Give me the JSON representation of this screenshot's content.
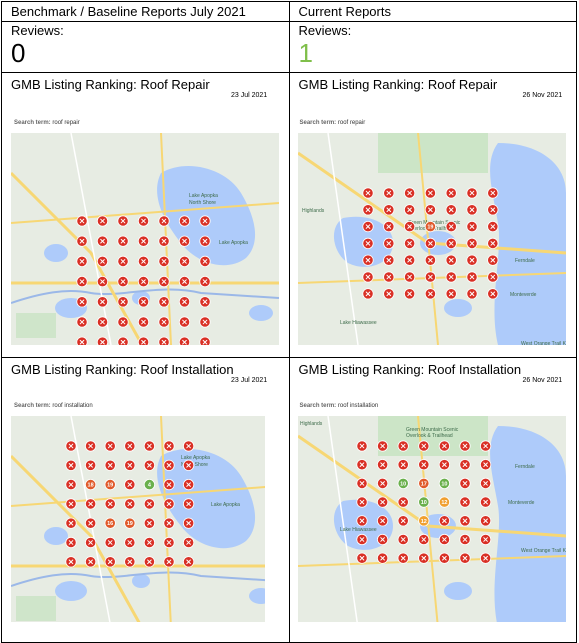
{
  "headers": {
    "baseline": "Benchmark / Baseline Reports July 2021",
    "current": "Current Reports"
  },
  "reviews": {
    "label": "Reviews:",
    "baseline_value": "0",
    "current_value": "1"
  },
  "maps": [
    {
      "title": "GMB Listing Ranking: Roof Repair",
      "date": "23 Jul 2021",
      "search_label": "Search term:",
      "search_term": "roof repair",
      "place_labels": [
        "Lake Apopka",
        "North Shore",
        "Lake Apopka"
      ],
      "grid": [
        [
          "x",
          "x",
          "x",
          "x",
          "x",
          "x",
          "x"
        ],
        [
          "x",
          "x",
          "x",
          "x",
          "x",
          "x",
          "x"
        ],
        [
          "x",
          "x",
          "x",
          "x",
          "x",
          "x",
          "x"
        ],
        [
          "x",
          "x",
          "x",
          "x",
          "x",
          "x",
          "x"
        ],
        [
          "x",
          "x",
          "x",
          "x",
          "x",
          "x",
          "x"
        ],
        [
          "x",
          "x",
          "x",
          "x",
          "x",
          "x",
          "x"
        ],
        [
          "x",
          "x",
          "x",
          "x",
          "x",
          "x",
          "x"
        ]
      ]
    },
    {
      "title": "GMB Listing Ranking: Roof Repair",
      "date": "26 Nov 2021",
      "search_label": "Search term:",
      "search_term": "roof repair",
      "place_labels": [
        "Highlands",
        "Green Mountain Scenic",
        "Overlook & Trailhead",
        "Lake Hiawassee",
        "Ferndale",
        "Monteverde",
        "West Orange Trail Killarney Station"
      ],
      "grid": [
        [
          "x",
          "x",
          "x",
          "x",
          "x",
          "x",
          "x"
        ],
        [
          "x",
          "x",
          "x",
          "x",
          "x",
          "x",
          "x"
        ],
        [
          "x",
          "x",
          "x",
          "19",
          "x",
          "x",
          "x"
        ],
        [
          "x",
          "x",
          "x",
          "x",
          "x",
          "x",
          "x"
        ],
        [
          "x",
          "x",
          "x",
          "x",
          "x",
          "x",
          "x"
        ],
        [
          "x",
          "x",
          "x",
          "x",
          "x",
          "x",
          "x"
        ],
        [
          "x",
          "x",
          "x",
          "x",
          "x",
          "x",
          "x"
        ]
      ]
    },
    {
      "title": "GMB Listing Ranking: Roof Installation",
      "date": "23 Jul 2021",
      "search_label": "Search term:",
      "search_term": "roof installation",
      "place_labels": [
        "Lake Apopka",
        "North Shore",
        "Lake Apopka"
      ],
      "grid": [
        [
          "x",
          "x",
          "x",
          "x",
          "x",
          "x",
          "x"
        ],
        [
          "x",
          "x",
          "x",
          "x",
          "x",
          "x",
          "x"
        ],
        [
          "x",
          "18",
          "19",
          "x",
          "4",
          "x",
          "x"
        ],
        [
          "x",
          "x",
          "x",
          "x",
          "x",
          "x",
          "x"
        ],
        [
          "x",
          "x",
          "16",
          "19",
          "x",
          "x",
          "x"
        ],
        [
          "x",
          "x",
          "x",
          "x",
          "x",
          "x",
          "x"
        ],
        [
          "x",
          "x",
          "x",
          "x",
          "x",
          "x",
          "x"
        ]
      ]
    },
    {
      "title": "GMB Listing Ranking: Roof Installation",
      "date": "26 Nov 2021",
      "search_label": "Search term:",
      "search_term": "roof installation",
      "place_labels": [
        "Highlands",
        "Green Mountain Scenic",
        "Overlook & Trailhead",
        "Lake Hiawassee",
        "Ferndale",
        "Monteverde",
        "West Orange Trail Killarney Station"
      ],
      "grid": [
        [
          "x",
          "x",
          "x",
          "x",
          "x",
          "x",
          "x"
        ],
        [
          "x",
          "x",
          "x",
          "x",
          "x",
          "x",
          "x"
        ],
        [
          "x",
          "x",
          "10",
          "17",
          "10",
          "x",
          "x"
        ],
        [
          "x",
          "x",
          "x",
          "10",
          "12",
          "x",
          "x"
        ],
        [
          "x",
          "x",
          "x",
          "12",
          "x",
          "x",
          "x"
        ],
        [
          "x",
          "x",
          "x",
          "x",
          "x",
          "x",
          "x"
        ],
        [
          "x",
          "x",
          "x",
          "x",
          "x",
          "x",
          "x"
        ]
      ]
    }
  ],
  "colors": {
    "pin_unranked": "#d93025",
    "pin_top": "#6ab04c",
    "pin_mid": "#f0a030",
    "pin_low": "#e05a2b",
    "water": "#aecbfa",
    "land": "#e7ece3",
    "park": "#c5e3bf",
    "road": "#f7d774"
  }
}
